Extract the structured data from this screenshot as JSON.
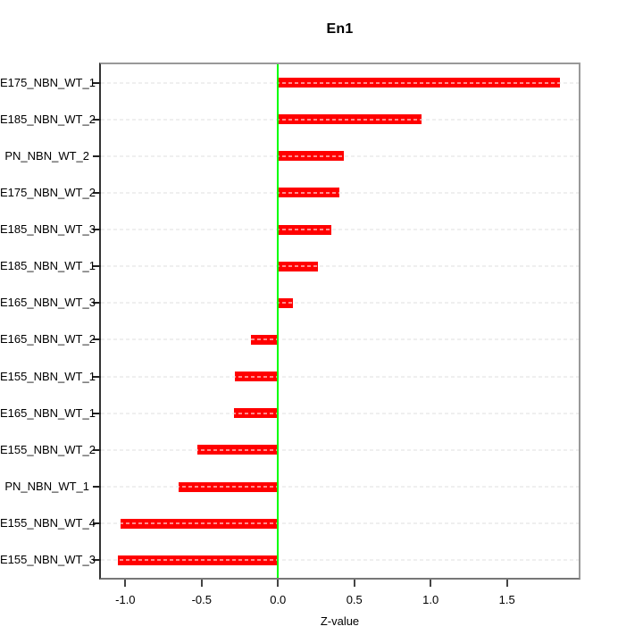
{
  "chart_data": {
    "type": "bar",
    "orientation": "horizontal",
    "title": "En1",
    "xlabel": "Z-value",
    "ylabel": "",
    "categories": [
      "E175_NBN_WT_1",
      "E185_NBN_WT_2",
      "PN_NBN_WT_2",
      "E175_NBN_WT_2",
      "E185_NBN_WT_3",
      "E185_NBN_WT_1",
      "E165_NBN_WT_3",
      "E165_NBN_WT_2",
      "E155_NBN_WT_1",
      "E165_NBN_WT_1",
      "E155_NBN_WT_2",
      "PN_NBN_WT_1",
      "E155_NBN_WT_4",
      "E155_NBN_WT_3"
    ],
    "values": [
      1.85,
      0.94,
      0.43,
      0.4,
      0.35,
      0.26,
      0.1,
      -0.18,
      -0.28,
      -0.29,
      -0.53,
      -0.65,
      -1.03,
      -1.05
    ],
    "xlim": [
      -1.16,
      1.97
    ],
    "x_tick_values": [
      -1.0,
      -0.5,
      0.0,
      0.5,
      1.0,
      1.5
    ],
    "x_tick_labels": [
      "-1.0",
      "-0.5",
      "0.0",
      "0.5",
      "1.0",
      "1.5"
    ],
    "grid": true,
    "legend": false,
    "colors": {
      "bar": "#ff0000",
      "zero_line": "#00ff00",
      "grid_line": "#dcdcdc",
      "bar_dash": "rgba(255,255,255,0.55)",
      "axis_box": "#999999",
      "text": "#000000"
    }
  }
}
